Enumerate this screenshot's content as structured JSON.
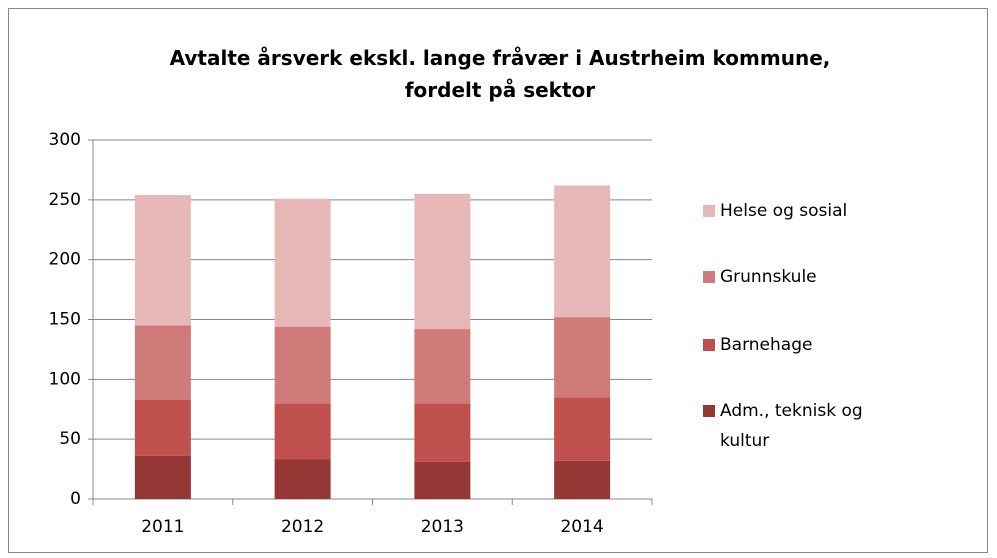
{
  "chart_data": {
    "type": "stacked_bar",
    "title": "Avtalte årsverk ekskl. lange fråvær i Austrheim kommune, fordelt på sektor",
    "categories": [
      "2011",
      "2012",
      "2013",
      "2014"
    ],
    "series": [
      {
        "name": "Adm., teknisk og kultur",
        "color": "#953735",
        "values": [
          36,
          33,
          31,
          32
        ]
      },
      {
        "name": "Barnehage",
        "color": "#c0504d",
        "values": [
          47,
          47,
          49,
          53
        ]
      },
      {
        "name": "Grunnskule",
        "color": "#d07b79",
        "values": [
          62,
          64,
          62,
          67
        ]
      },
      {
        "name": "Helse og sosial",
        "color": "#e6b9b8",
        "values": [
          109,
          107,
          113,
          110
        ]
      }
    ],
    "ylim": [
      0,
      300
    ],
    "yticks": [
      0,
      50,
      100,
      150,
      200,
      250,
      300
    ],
    "grid": true,
    "legend": "right"
  }
}
